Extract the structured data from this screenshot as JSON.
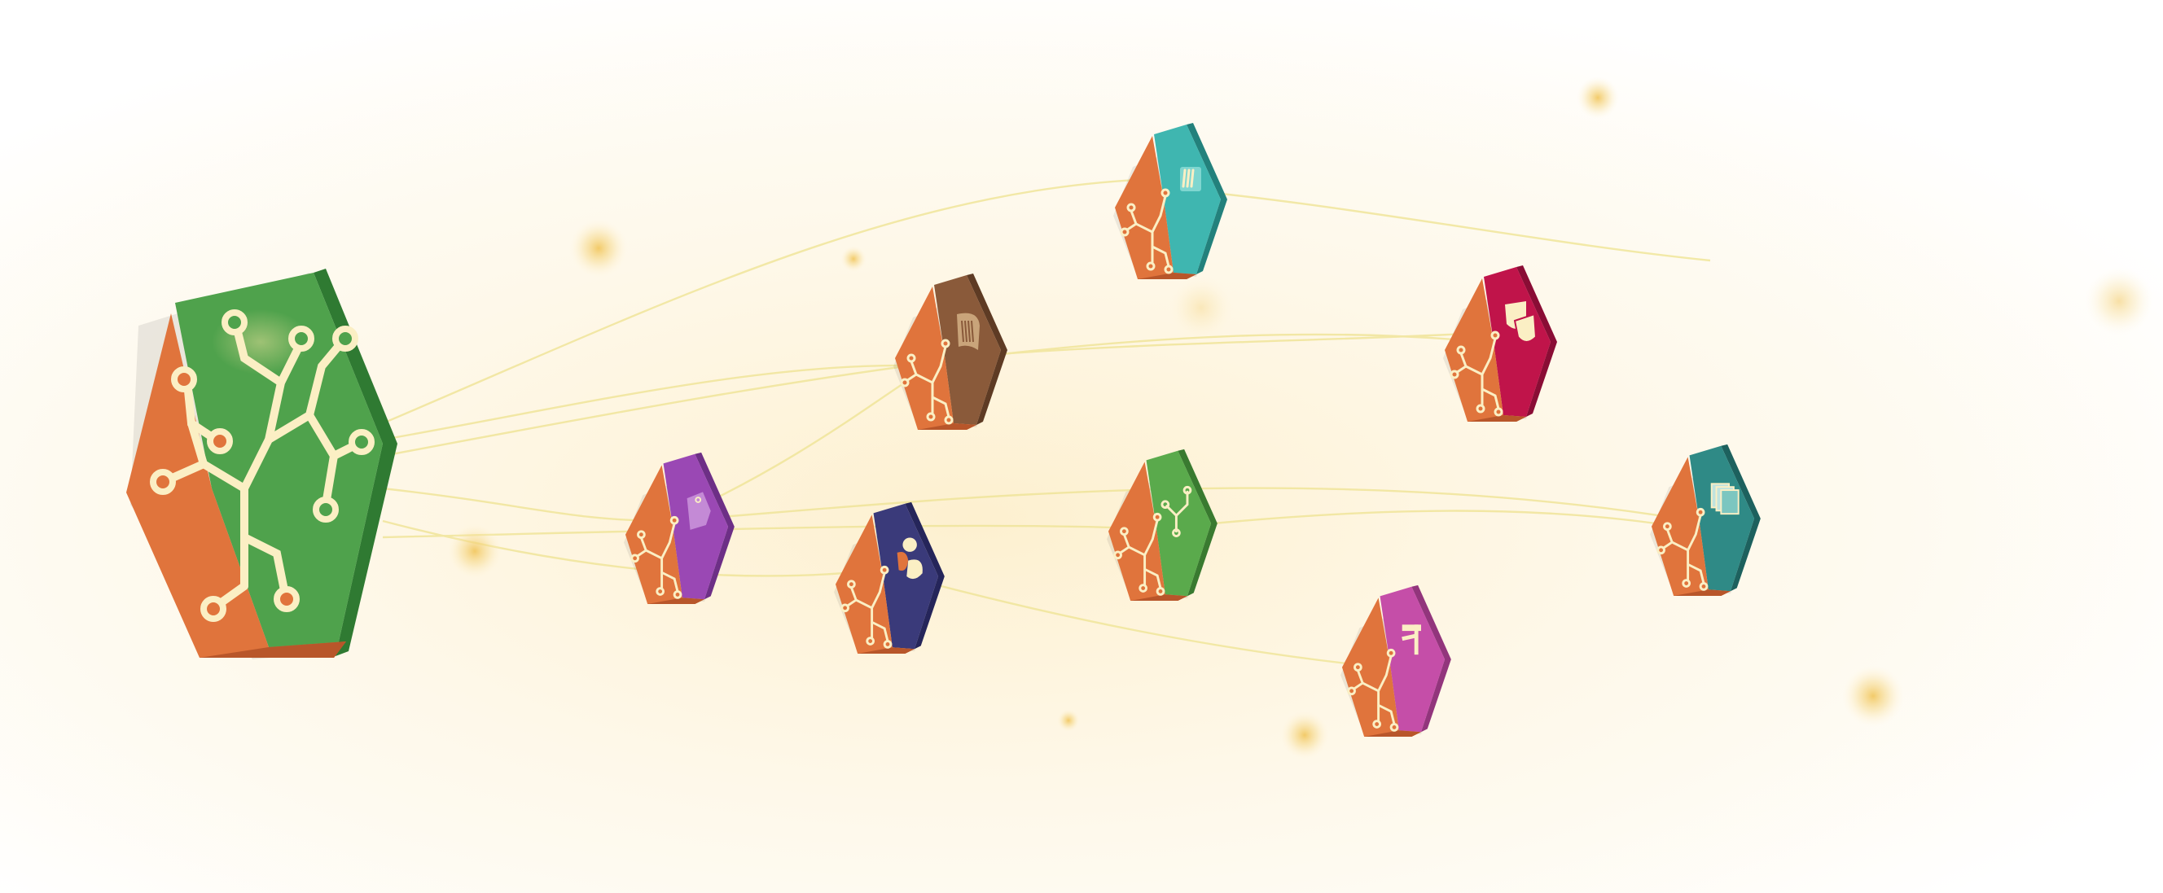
{
  "scene": {
    "background": "#ffffff",
    "glow_color": "#fdf3d8",
    "link_color": "#f2e9a8",
    "orb_color": "#f0c860"
  },
  "hub": {
    "icon": "circuit-tree-icon",
    "left_face": "#e0743c",
    "right_face": "#4fa24c",
    "side": "#2f7a32",
    "line": "#fbefc4"
  },
  "tiles": [
    {
      "id": "teal-list",
      "icon": "list-icon",
      "color": "#3fb6b0",
      "side": "#23817c"
    },
    {
      "id": "brown-document",
      "icon": "document-icon",
      "color": "#8a5a3a",
      "side": "#5e3b24"
    },
    {
      "id": "crimson-masks",
      "icon": "theater-masks-icon",
      "color": "#c0144a",
      "side": "#8a0d35"
    },
    {
      "id": "purple-tag",
      "icon": "price-tag-icon",
      "color": "#9a48b4",
      "side": "#6d2f86"
    },
    {
      "id": "indigo-people",
      "icon": "people-icon",
      "color": "#3a3a7a",
      "side": "#25255a"
    },
    {
      "id": "green-branch",
      "icon": "branch-icon",
      "color": "#5aaa4c",
      "side": "#397a30"
    },
    {
      "id": "teal-pages",
      "icon": "stacked-pages-icon",
      "color": "#2f8a86",
      "side": "#1d615e"
    },
    {
      "id": "magenta-music",
      "icon": "music-note-icon",
      "color": "#c54ea8",
      "side": "#92357c"
    }
  ]
}
